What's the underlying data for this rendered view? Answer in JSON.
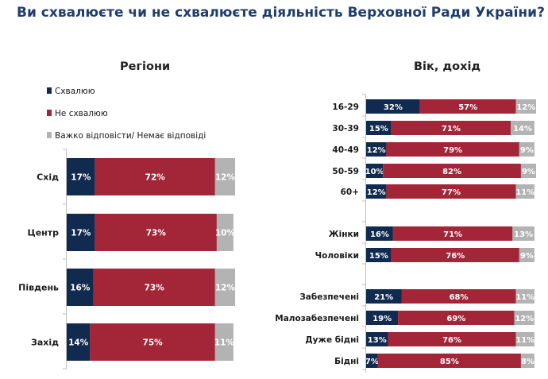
{
  "title": "Ви схвалюєте чи не схвалюєте діяльність Верховної Ради України?",
  "colors": {
    "approve": "#112a4f",
    "disapprove": "#a32638",
    "hard_to_say": "#b3b3b3"
  },
  "chart_data": [
    {
      "type": "bar",
      "orientation": "horizontal",
      "stacked": true,
      "title": "Регіони",
      "legend_position": "top-left",
      "categories": [
        "Схід",
        "Центр",
        "Південь",
        "Захід"
      ],
      "series": [
        {
          "name": "Схвалюю",
          "values": [
            17,
            17,
            16,
            14
          ]
        },
        {
          "name": "Не схвалюю",
          "values": [
            72,
            73,
            73,
            75
          ]
        },
        {
          "name": "Важко відповісти/ Немає відповіді",
          "values": [
            12,
            10,
            12,
            11
          ]
        }
      ]
    },
    {
      "type": "bar",
      "orientation": "horizontal",
      "stacked": true,
      "title": "Вік, дохід",
      "categories": [
        "16-29",
        "30-39",
        "40-49",
        "50-59",
        "60+",
        "Жінки",
        "Чоловіки",
        "Забезпечені",
        "Малозабезпечені",
        "Дуже бідні",
        "Бідні"
      ],
      "series": [
        {
          "name": "Схвалюю",
          "values": [
            32,
            15,
            12,
            10,
            12,
            16,
            15,
            21,
            19,
            13,
            7
          ]
        },
        {
          "name": "Не схвалюю",
          "values": [
            57,
            71,
            79,
            82,
            77,
            71,
            76,
            68,
            69,
            76,
            85
          ]
        },
        {
          "name": "Важко відповісти/ Немає відповіді",
          "values": [
            12,
            14,
            9,
            9,
            11,
            13,
            9,
            11,
            12,
            11,
            8
          ]
        }
      ]
    }
  ]
}
